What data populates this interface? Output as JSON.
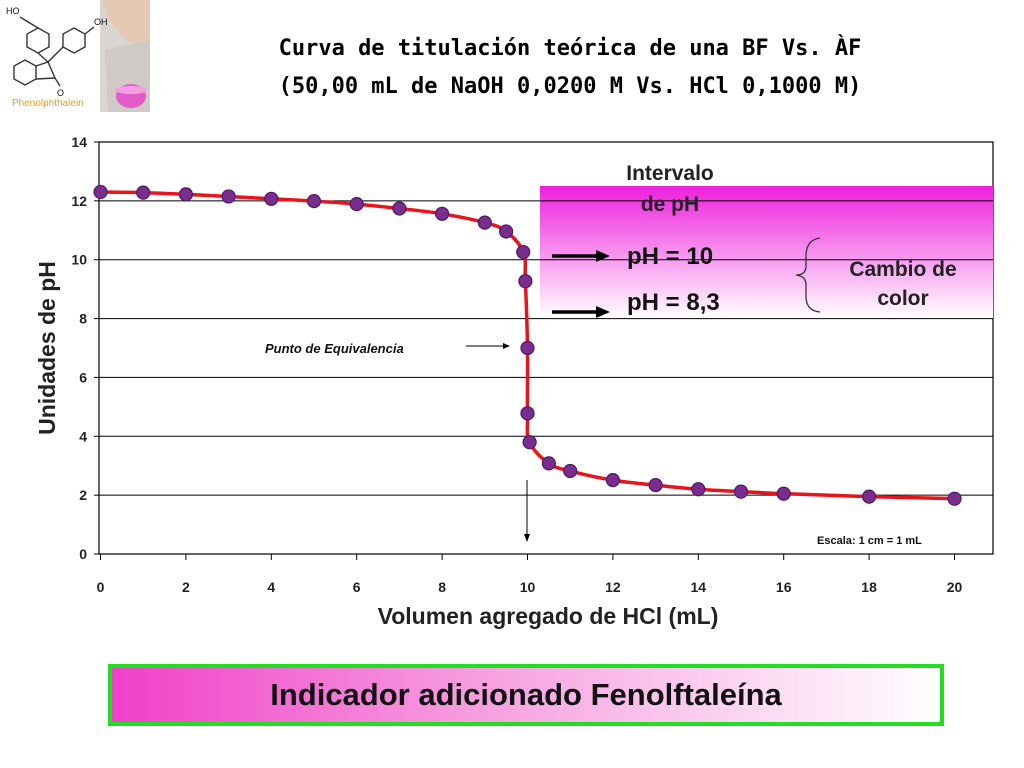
{
  "title": {
    "line1": "Curva de titulación teórica de una BF Vs. ÀF",
    "line2": "(50,00 mL de NaOH 0,0200 M Vs. HCl 0,1000 M)"
  },
  "logo": {
    "caption": "Phenolphthalein",
    "ho_label": "HO",
    "oh_label": "OH",
    "o_label": "O"
  },
  "colors": {
    "curve": "#e8141c",
    "marker_fill": "#7b2d8e",
    "marker_stroke": "#4a1a66",
    "band_from": "#ee20dd",
    "band_to": "#ffffff",
    "box_border": "#22dd22",
    "grid": "#000000"
  },
  "chart_data": {
    "type": "line",
    "xlabel": "Volumen agregado de HCl (mL)",
    "ylabel": "Unidades de pH",
    "xlim": [
      0,
      21
    ],
    "ylim": [
      0,
      14
    ],
    "xticks": [
      "0",
      "2",
      "4",
      "6",
      "8",
      "10",
      "12",
      "14",
      "16",
      "18",
      "20"
    ],
    "yticks": [
      "0",
      "2",
      "4",
      "6",
      "8",
      "10",
      "12",
      "14"
    ],
    "grid": "horizontal",
    "x": [
      0,
      1,
      2,
      3,
      4,
      5,
      6,
      7,
      8,
      9,
      9.5,
      9.9,
      9.95,
      10.0,
      10.0,
      10.05,
      10.5,
      11,
      12,
      13,
      14,
      15,
      16,
      18,
      20
    ],
    "y": [
      12.3,
      12.28,
      12.22,
      12.15,
      12.07,
      11.99,
      11.89,
      11.74,
      11.56,
      11.26,
      10.96,
      10.26,
      9.27,
      7.0,
      4.78,
      3.8,
      3.08,
      2.82,
      2.51,
      2.34,
      2.2,
      2.12,
      2.05,
      1.95,
      1.88
    ],
    "annotations": {
      "interval_title": "Intervalo de pH",
      "ph_high": "pH = 10",
      "ph_low": "pH = 8,3",
      "color_change": "Cambio de color",
      "equivalence": "Punto de Equivalencia",
      "scale": "Escala: 1 cm = 1 mL"
    }
  },
  "footer": {
    "indicator": "Indicador adicionado Fenolftaleína"
  }
}
